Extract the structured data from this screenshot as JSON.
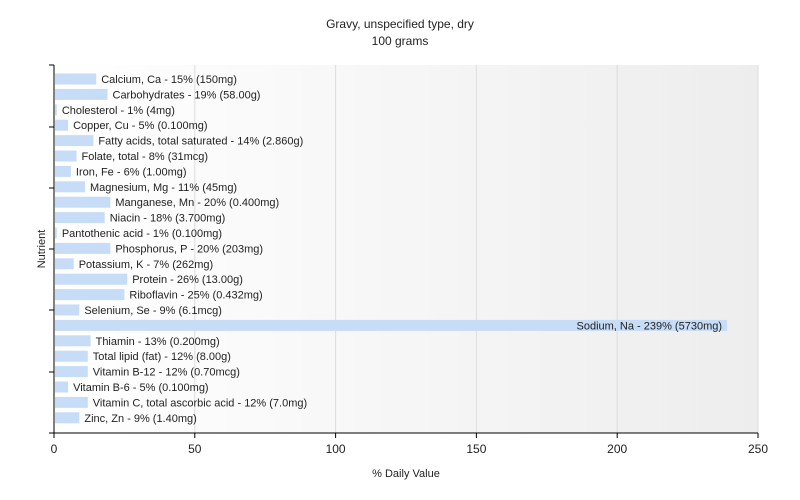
{
  "chart_data": {
    "type": "bar",
    "orientation": "horizontal",
    "title": "Gravy, unspecified type, dry",
    "subtitle": "100 grams",
    "xlabel": "% Daily Value",
    "ylabel": "Nutrient",
    "xlim": [
      0,
      250
    ],
    "xticks": [
      "0",
      "50",
      "100",
      "150",
      "200",
      "250"
    ],
    "xtick_values": [
      0,
      50,
      100,
      150,
      200,
      250
    ],
    "grid": true,
    "legend": "none",
    "bar_color": "#c6dcf7",
    "categories": [
      "Calcium, Ca",
      "Carbohydrates",
      "Cholesterol",
      "Copper, Cu",
      "Fatty acids, total saturated",
      "Folate, total",
      "Iron, Fe",
      "Magnesium, Mg",
      "Manganese, Mn",
      "Niacin",
      "Pantothenic acid",
      "Phosphorus, P",
      "Potassium, K",
      "Protein",
      "Riboflavin",
      "Selenium, Se",
      "Sodium, Na",
      "Thiamin",
      "Total lipid (fat)",
      "Vitamin B-12",
      "Vitamin B-6",
      "Vitamin C, total ascorbic acid",
      "Zinc, Zn"
    ],
    "values": [
      15,
      19,
      1,
      5,
      14,
      8,
      6,
      11,
      20,
      18,
      1,
      20,
      7,
      26,
      25,
      9,
      239,
      13,
      12,
      12,
      5,
      12,
      9
    ],
    "labels": [
      "Calcium, Ca - 15% (150mg)",
      "Carbohydrates - 19% (58.00g)",
      "Cholesterol - 1% (4mg)",
      "Copper, Cu - 5% (0.100mg)",
      "Fatty acids, total saturated - 14% (2.860g)",
      "Folate, total - 8% (31mcg)",
      "Iron, Fe - 6% (1.00mg)",
      "Magnesium, Mg - 11% (45mg)",
      "Manganese, Mn - 20% (0.400mg)",
      "Niacin - 18% (3.700mg)",
      "Pantothenic acid - 1% (0.100mg)",
      "Phosphorus, P - 20% (203mg)",
      "Potassium, K - 7% (262mg)",
      "Protein - 26% (13.00g)",
      "Riboflavin - 25% (0.432mg)",
      "Selenium, Se - 9% (6.1mcg)",
      "Sodium, Na - 239% (5730mg)",
      "Thiamin - 13% (0.200mg)",
      "Total lipid (fat) - 12% (8.00g)",
      "Vitamin B-12 - 12% (0.70mcg)",
      "Vitamin B-6 - 5% (0.100mg)",
      "Vitamin C, total ascorbic acid - 12% (7.0mg)",
      "Zinc, Zn - 9% (1.40mg)"
    ]
  }
}
